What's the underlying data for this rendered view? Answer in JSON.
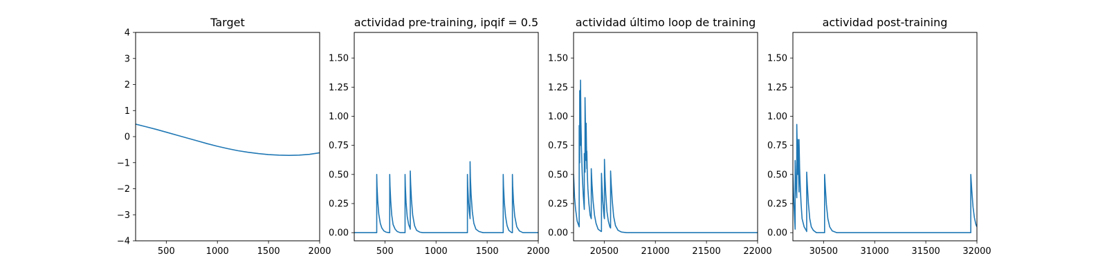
{
  "colors": {
    "series": "#1f77b4",
    "axis": "#000000",
    "background": "#ffffff"
  },
  "chart_data": [
    {
      "type": "line",
      "title": "Target",
      "xlabel": "",
      "ylabel": "",
      "xlim": [
        200,
        2000
      ],
      "ylim": [
        -4,
        4
      ],
      "xticks": [
        500,
        1000,
        1500,
        2000
      ],
      "xtick_labels": [
        "500",
        "1000",
        "1500",
        "2000"
      ],
      "yticks": [
        -4,
        -3,
        -2,
        -1,
        0,
        1,
        2,
        3,
        4
      ],
      "ytick_labels": [
        "−4",
        "−3",
        "−2",
        "−1",
        "0",
        "1",
        "2",
        "3",
        "4"
      ],
      "grid": false,
      "legend": "none",
      "series": [
        {
          "x": [
            200,
            300,
            400,
            500,
            600,
            700,
            800,
            900,
            1000,
            1100,
            1200,
            1300,
            1400,
            1500,
            1600,
            1700,
            1800,
            1900,
            2000
          ],
          "y": [
            0.48,
            0.38,
            0.28,
            0.17,
            0.06,
            -0.05,
            -0.16,
            -0.27,
            -0.37,
            -0.46,
            -0.54,
            -0.6,
            -0.65,
            -0.69,
            -0.71,
            -0.72,
            -0.71,
            -0.68,
            -0.62
          ]
        }
      ]
    },
    {
      "type": "line",
      "title": "actividad pre-training, ipqif = 0.5",
      "xlabel": "",
      "ylabel": "",
      "xlim": [
        200,
        2000
      ],
      "ylim": [
        -0.07,
        1.72
      ],
      "xticks": [
        500,
        1000,
        1500,
        2000
      ],
      "xtick_labels": [
        "500",
        "1000",
        "1500",
        "2000"
      ],
      "yticks": [
        0,
        0.25,
        0.5,
        0.75,
        1.0,
        1.25,
        1.5
      ],
      "ytick_labels": [
        "0.00",
        "0.25",
        "0.50",
        "0.75",
        "1.00",
        "1.25",
        "1.50"
      ],
      "grid": false,
      "legend": "none",
      "series": [
        {
          "x": [
            200,
            420,
            420,
            423,
            430,
            440,
            455,
            470,
            490,
            510,
            540,
            547,
            547,
            550,
            557,
            567,
            580,
            600,
            620,
            650,
            690,
            697,
            697,
            700,
            707,
            718,
            732,
            745,
            748,
            748,
            752,
            760,
            772,
            790,
            810,
            840,
            870,
            1300,
            1307,
            1307,
            1310,
            1318,
            1325,
            1333,
            1333,
            1336,
            1343,
            1355,
            1370,
            1390,
            1420,
            1460,
            1650,
            1657,
            1657,
            1660,
            1668,
            1680,
            1695,
            1712,
            1740,
            1747,
            1747,
            1750,
            1758,
            1770,
            1790,
            1815,
            1850,
            2000
          ],
          "y": [
            0,
            0,
            0.5,
            0.4,
            0.27,
            0.16,
            0.08,
            0.04,
            0.015,
            0.005,
            0,
            0,
            0.5,
            0.4,
            0.27,
            0.15,
            0.07,
            0.03,
            0.01,
            0,
            0,
            0,
            0.5,
            0.4,
            0.26,
            0.14,
            0.07,
            0.04,
            0.03,
            0.53,
            0.42,
            0.28,
            0.15,
            0.06,
            0.02,
            0.005,
            0,
            0,
            0,
            0.5,
            0.4,
            0.26,
            0.18,
            0.12,
            0.61,
            0.48,
            0.33,
            0.18,
            0.08,
            0.03,
            0.01,
            0,
            0,
            0,
            0.5,
            0.4,
            0.26,
            0.14,
            0.06,
            0.02,
            0,
            0,
            0.5,
            0.4,
            0.26,
            0.14,
            0.05,
            0.015,
            0,
            0
          ]
        }
      ]
    },
    {
      "type": "line",
      "title": "actividad último loop de training",
      "xlabel": "",
      "ylabel": "",
      "xlim": [
        20200,
        22000
      ],
      "ylim": [
        -0.07,
        1.72
      ],
      "xticks": [
        20500,
        21000,
        21500,
        22000
      ],
      "xtick_labels": [
        "20500",
        "21000",
        "21500",
        "22000"
      ],
      "yticks": [
        0,
        0.25,
        0.5,
        0.75,
        1.0,
        1.25,
        1.5
      ],
      "ytick_labels": [
        "0.00",
        "0.25",
        "0.50",
        "0.75",
        "1.00",
        "1.25",
        "1.50"
      ],
      "grid": false,
      "legend": "none",
      "series": [
        {
          "x": [
            20200,
            20210,
            20220,
            20235,
            20255,
            20255,
            20260,
            20260,
            20265,
            20268,
            20268,
            20272,
            20276,
            20276,
            20285,
            20295,
            20305,
            20305,
            20312,
            20312,
            20318,
            20323,
            20323,
            20326,
            20330,
            20330,
            20334,
            20340,
            20350,
            20362,
            20373,
            20373,
            20380,
            20390,
            20405,
            20420,
            20440,
            20470,
            20473,
            20473,
            20478,
            20485,
            20498,
            20502,
            20502,
            20507,
            20515,
            20527,
            20540,
            20555,
            20562,
            20562,
            20568,
            20578,
            20592,
            20610,
            20635,
            20670,
            20720,
            22000
          ],
          "y": [
            0.5,
            0.3,
            0.2,
            0.1,
            0.05,
            0.92,
            0.6,
            1.22,
            0.9,
            0.75,
            1.31,
            0.95,
            0.8,
            0.75,
            0.5,
            0.32,
            0.2,
            0.68,
            0.52,
            1.16,
            0.85,
            0.62,
            0.94,
            0.75,
            0.55,
            0.7,
            0.52,
            0.38,
            0.25,
            0.15,
            0.12,
            0.55,
            0.42,
            0.28,
            0.15,
            0.08,
            0.03,
            0.01,
            0.01,
            0.51,
            0.4,
            0.28,
            0.14,
            0.12,
            0.63,
            0.48,
            0.33,
            0.18,
            0.1,
            0.05,
            0.04,
            0.53,
            0.42,
            0.28,
            0.14,
            0.06,
            0.02,
            0.005,
            0,
            0
          ]
        }
      ]
    },
    {
      "type": "line",
      "title": "actividad post-training",
      "xlabel": "",
      "ylabel": "",
      "xlim": [
        30200,
        32000
      ],
      "ylim": [
        -0.07,
        1.72
      ],
      "xticks": [
        30500,
        31000,
        31500,
        32000
      ],
      "xtick_labels": [
        "30500",
        "31000",
        "31500",
        "32000"
      ],
      "yticks": [
        0,
        0.25,
        0.5,
        0.75,
        1.0,
        1.25,
        1.5
      ],
      "ytick_labels": [
        "0.00",
        "0.25",
        "0.50",
        "0.75",
        "1.00",
        "1.25",
        "1.50"
      ],
      "grid": false,
      "legend": "none",
      "series": [
        {
          "x": [
            30200,
            30210,
            30222,
            30222,
            30228,
            30238,
            30238,
            30243,
            30248,
            30248,
            30253,
            30260,
            30260,
            30266,
            30272,
            30280,
            30290,
            30310,
            30330,
            30335,
            30335,
            30342,
            30352,
            30365,
            30380,
            30400,
            30430,
            30510,
            30510,
            30518,
            30528,
            30542,
            30560,
            30585,
            30630,
            31940,
            31940,
            31950,
            31962,
            31975,
            31990,
            32000
          ],
          "y": [
            0.5,
            0.25,
            0.03,
            0.62,
            0.45,
            0.3,
            0.93,
            0.7,
            0.5,
            0.8,
            0.6,
            0.35,
            0.8,
            0.55,
            0.4,
            0.25,
            0.12,
            0.05,
            0.02,
            0.01,
            0.52,
            0.4,
            0.25,
            0.12,
            0.05,
            0.02,
            0,
            0,
            0.5,
            0.38,
            0.24,
            0.12,
            0.05,
            0.015,
            0,
            0,
            0.5,
            0.36,
            0.22,
            0.13,
            0.07,
            0.05
          ]
        }
      ]
    }
  ]
}
